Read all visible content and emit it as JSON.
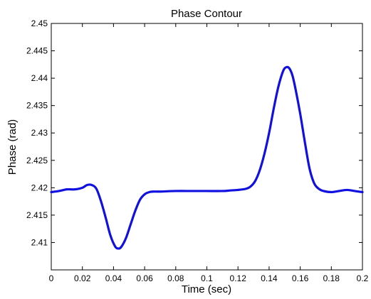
{
  "chart_data": {
    "type": "line",
    "title": "Phase Contour",
    "xlabel": "Time (sec)",
    "ylabel": "Phase (rad)",
    "xlim": [
      0,
      0.2
    ],
    "ylim": [
      2.405,
      2.45
    ],
    "xticks": [
      0,
      0.02,
      0.04,
      0.06,
      0.08,
      0.1,
      0.12,
      0.14,
      0.16,
      0.18,
      0.2
    ],
    "xtick_labels": [
      "0",
      "0.02",
      "0.04",
      "0.06",
      "0.08",
      "0.1",
      "0.12",
      "0.14",
      "0.16",
      "0.18",
      "0.2"
    ],
    "yticks": [
      2.41,
      2.415,
      2.42,
      2.425,
      2.43,
      2.435,
      2.44,
      2.445,
      2.45
    ],
    "ytick_labels": [
      "2.41",
      "2.415",
      "2.42",
      "2.425",
      "2.43",
      "2.435",
      "2.44",
      "2.445",
      "2.45"
    ],
    "grid": false,
    "legend": false,
    "series": [
      {
        "color": "#1010e0",
        "x": [
          0,
          0.005,
          0.01,
          0.015,
          0.02,
          0.023,
          0.026,
          0.029,
          0.032,
          0.035,
          0.038,
          0.041,
          0.043,
          0.045,
          0.048,
          0.051,
          0.054,
          0.057,
          0.06,
          0.063,
          0.066,
          0.07,
          0.08,
          0.09,
          0.1,
          0.11,
          0.115,
          0.12,
          0.125,
          0.128,
          0.131,
          0.134,
          0.137,
          0.14,
          0.143,
          0.146,
          0.149,
          0.151,
          0.153,
          0.155,
          0.157,
          0.16,
          0.163,
          0.166,
          0.169,
          0.172,
          0.175,
          0.18,
          0.185,
          0.19,
          0.195,
          0.2
        ],
        "y": [
          2.4192,
          2.4194,
          2.4197,
          2.4197,
          2.42,
          2.4205,
          2.4205,
          2.4198,
          2.4175,
          2.4145,
          2.4113,
          2.4093,
          2.4089,
          2.4092,
          2.4108,
          2.4133,
          2.4158,
          2.4178,
          2.4188,
          2.4192,
          2.4193,
          2.4193,
          2.4194,
          2.4194,
          2.4194,
          2.4194,
          2.4195,
          2.4196,
          2.4198,
          2.4202,
          2.4212,
          2.4232,
          2.4262,
          2.43,
          2.4345,
          2.4385,
          2.4413,
          2.442,
          2.4418,
          2.4405,
          2.438,
          2.4335,
          2.4283,
          2.4235,
          2.4208,
          2.4198,
          2.4194,
          2.4192,
          2.4194,
          2.4196,
          2.4194,
          2.4192
        ]
      }
    ]
  }
}
